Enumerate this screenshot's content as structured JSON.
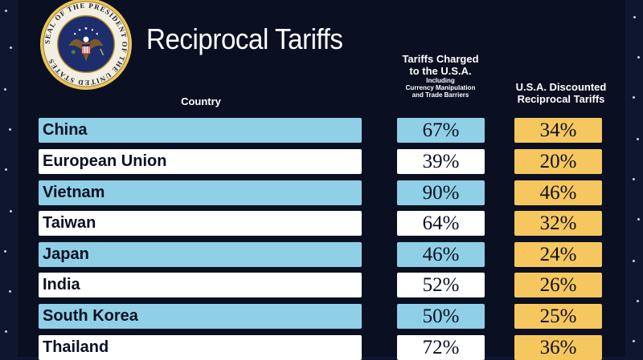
{
  "title": "Reciprocal Tariffs",
  "seal": {
    "text": "SEAL OF THE PRESIDENT OF THE UNITED STATES",
    "icon": "presidential-seal-eagle"
  },
  "headers": {
    "country": "Country",
    "charged_line1": "Tariffs Charged",
    "charged_line2": "to the U.S.A.",
    "charged_sub1": "Including",
    "charged_sub2": "Currency Manipulation",
    "charged_sub3": "and Trade Barriers",
    "reciprocal_line1": "U.S.A. Discounted",
    "reciprocal_line2": "Reciprocal Tariffs"
  },
  "rows": [
    {
      "country": "China",
      "charged": "67%",
      "reciprocal": "34%"
    },
    {
      "country": "European Union",
      "charged": "39%",
      "reciprocal": "20%"
    },
    {
      "country": "Vietnam",
      "charged": "90%",
      "reciprocal": "46%"
    },
    {
      "country": "Taiwan",
      "charged": "64%",
      "reciprocal": "32%"
    },
    {
      "country": "Japan",
      "charged": "46%",
      "reciprocal": "24%"
    },
    {
      "country": "India",
      "charged": "52%",
      "reciprocal": "26%"
    },
    {
      "country": "South Korea",
      "charged": "50%",
      "reciprocal": "25%"
    },
    {
      "country": "Thailand",
      "charged": "72%",
      "reciprocal": "36%"
    }
  ],
  "colors": {
    "background": "#0a0f22",
    "row_blue": "#8fd0e6",
    "row_white": "#ffffff",
    "reciprocal_gold": "#f6c75e"
  }
}
